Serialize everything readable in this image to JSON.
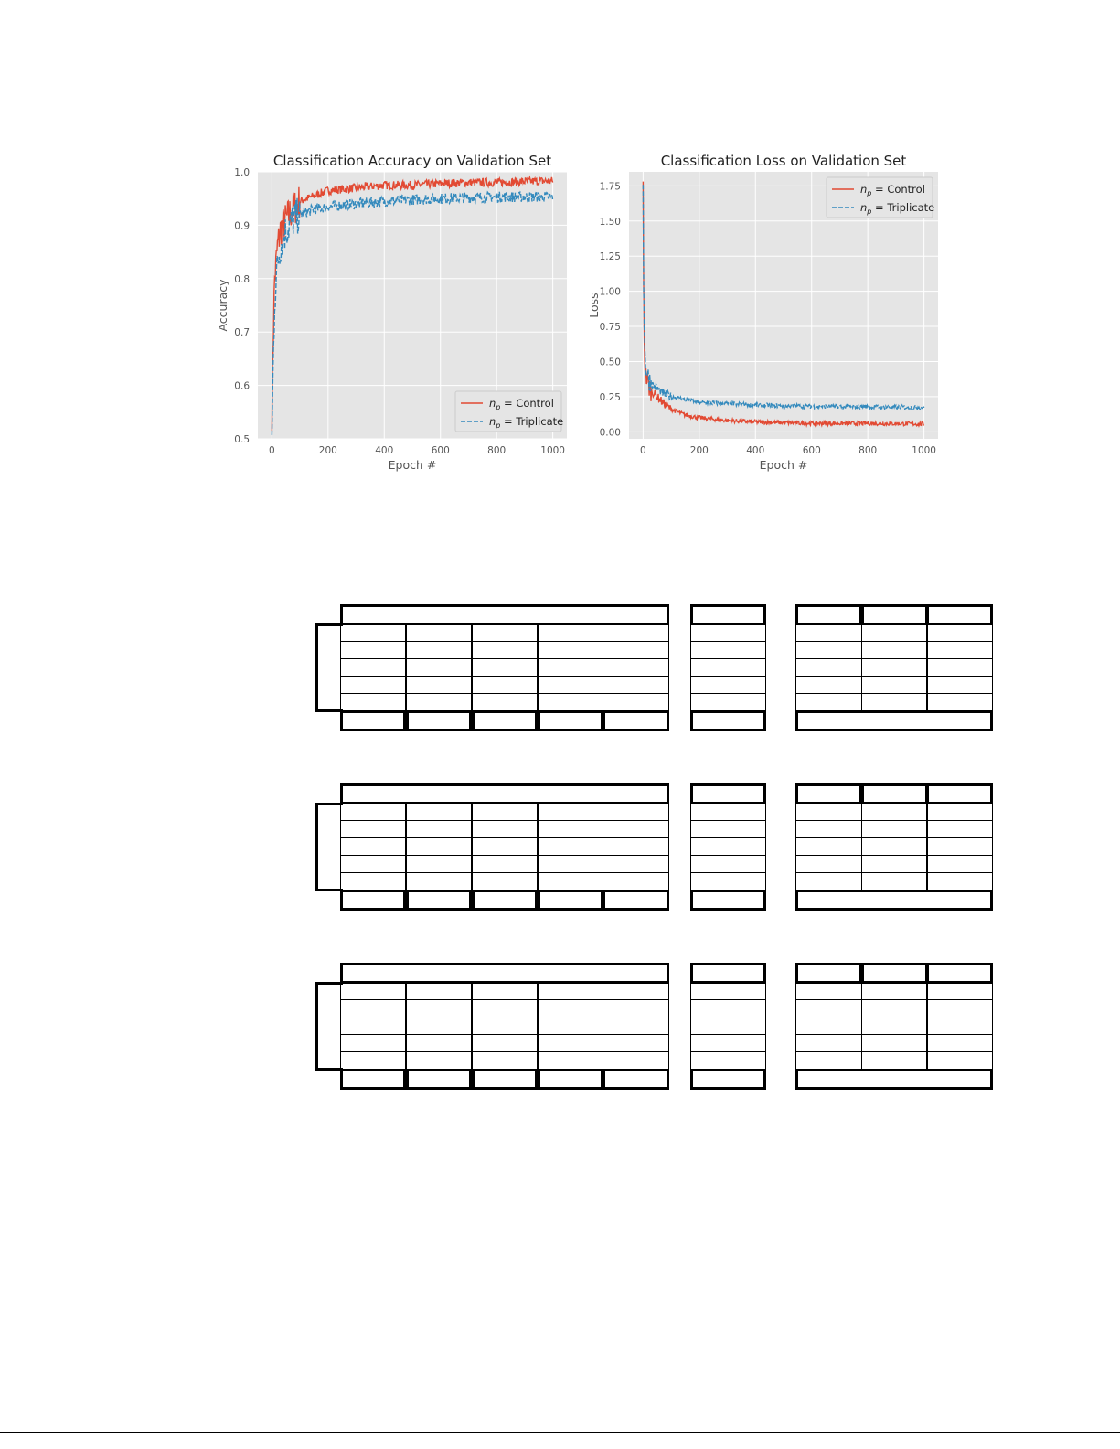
{
  "chart_data": [
    {
      "type": "line",
      "title": "Classification Accuracy on Validation Set",
      "xlabel": "Epoch #",
      "ylabel": "Accuracy",
      "xlim": [
        -50,
        1050
      ],
      "ylim": [
        0.5,
        1.0
      ],
      "xticks": [
        0,
        200,
        400,
        600,
        800,
        1000
      ],
      "yticks": [
        0.5,
        0.6,
        0.7,
        0.8,
        0.9,
        1.0
      ],
      "ytick_labels": [
        "0.5",
        "0.6",
        "0.7",
        "0.8",
        "0.9",
        "1.0"
      ],
      "grid": true,
      "legend": "lower-right",
      "series": [
        {
          "name": "Control",
          "legend_prefix": "n",
          "legend_sub": "p",
          "legend_eq": " = ",
          "color": "#E24A33",
          "dash": "solid",
          "x": [
            0,
            5,
            10,
            20,
            30,
            50,
            75,
            100,
            150,
            200,
            300,
            400,
            500,
            600,
            700,
            800,
            900,
            1000
          ],
          "y": [
            0.55,
            0.7,
            0.8,
            0.86,
            0.89,
            0.91,
            0.93,
            0.945,
            0.955,
            0.965,
            0.97,
            0.975,
            0.975,
            0.978,
            0.98,
            0.98,
            0.982,
            0.983
          ]
        },
        {
          "name": "Triplicate",
          "legend_prefix": "n",
          "legend_sub": "p",
          "legend_eq": " = ",
          "color": "#348ABD",
          "dash": "dashed",
          "x": [
            0,
            5,
            10,
            20,
            30,
            50,
            75,
            100,
            150,
            200,
            300,
            400,
            500,
            600,
            700,
            800,
            900,
            1000
          ],
          "y": [
            0.5,
            0.65,
            0.76,
            0.83,
            0.86,
            0.89,
            0.91,
            0.92,
            0.93,
            0.935,
            0.94,
            0.945,
            0.948,
            0.95,
            0.952,
            0.953,
            0.953,
            0.953
          ]
        }
      ]
    },
    {
      "type": "line",
      "title": "Classification Loss on Validation Set",
      "xlabel": "Epoch #",
      "ylabel": "Loss",
      "xlim": [
        -50,
        1050
      ],
      "ylim": [
        -0.05,
        1.85
      ],
      "xticks": [
        0,
        200,
        400,
        600,
        800,
        1000
      ],
      "yticks": [
        0.0,
        0.25,
        0.5,
        0.75,
        1.0,
        1.25,
        1.5,
        1.75
      ],
      "ytick_labels": [
        "0.00",
        "0.25",
        "0.50",
        "0.75",
        "1.00",
        "1.25",
        "1.50",
        "1.75"
      ],
      "grid": true,
      "legend": "top-right",
      "series": [
        {
          "name": "Control",
          "legend_prefix": "n",
          "legend_sub": "p",
          "legend_eq": " = ",
          "color": "#E24A33",
          "dash": "solid",
          "x": [
            0,
            2,
            5,
            10,
            20,
            30,
            50,
            75,
            100,
            150,
            200,
            300,
            400,
            500,
            600,
            700,
            800,
            900,
            1000
          ],
          "y": [
            1.72,
            1.0,
            0.55,
            0.4,
            0.33,
            0.29,
            0.25,
            0.2,
            0.16,
            0.12,
            0.1,
            0.08,
            0.07,
            0.065,
            0.06,
            0.06,
            0.06,
            0.058,
            0.055
          ]
        },
        {
          "name": "Triplicate",
          "legend_prefix": "n",
          "legend_sub": "p",
          "legend_eq": " = ",
          "color": "#348ABD",
          "dash": "dashed",
          "x": [
            0,
            2,
            5,
            10,
            20,
            30,
            50,
            75,
            100,
            150,
            200,
            300,
            400,
            500,
            600,
            700,
            800,
            900,
            1000
          ],
          "y": [
            1.76,
            1.1,
            0.62,
            0.45,
            0.38,
            0.34,
            0.31,
            0.27,
            0.25,
            0.23,
            0.21,
            0.2,
            0.19,
            0.185,
            0.18,
            0.18,
            0.178,
            0.175,
            0.175
          ]
        }
      ]
    }
  ]
}
